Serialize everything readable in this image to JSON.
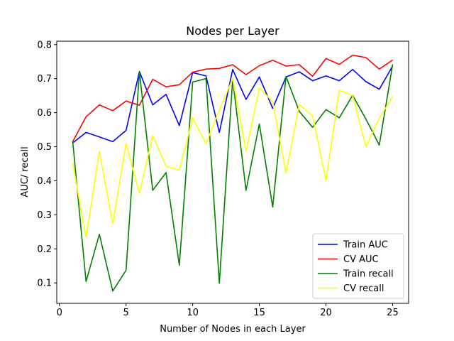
{
  "chart_data": {
    "type": "line",
    "title": "Nodes per Layer",
    "xlabel": "Number of Nodes in each Layer",
    "ylabel": "AUC/ recall",
    "xlim": [
      -0.2,
      26.2
    ],
    "ylim": [
      0.04,
      0.81
    ],
    "x_ticks": [
      0,
      5,
      10,
      15,
      20,
      25
    ],
    "y_ticks": [
      0.1,
      0.2,
      0.3,
      0.4,
      0.5,
      0.6,
      0.7,
      0.8
    ],
    "grid": false,
    "legend_position": "lower-right",
    "x": [
      1,
      2,
      3,
      4,
      5,
      6,
      7,
      8,
      9,
      10,
      11,
      12,
      13,
      14,
      15,
      16,
      17,
      18,
      19,
      20,
      21,
      22,
      23,
      24,
      25
    ],
    "series": [
      {
        "name": "Train AUC",
        "color": "#0000ff",
        "values": [
          0.511,
          0.542,
          0.529,
          0.515,
          0.548,
          0.721,
          0.623,
          0.654,
          0.562,
          0.718,
          0.708,
          0.542,
          0.727,
          0.639,
          0.705,
          0.613,
          0.705,
          0.72,
          0.694,
          0.708,
          0.694,
          0.727,
          0.691,
          0.669,
          0.737
        ]
      },
      {
        "name": "CV AUC",
        "color": "#ff0000",
        "values": [
          0.515,
          0.588,
          0.623,
          0.606,
          0.634,
          0.622,
          0.698,
          0.676,
          0.682,
          0.719,
          0.728,
          0.73,
          0.741,
          0.712,
          0.738,
          0.754,
          0.737,
          0.741,
          0.707,
          0.759,
          0.742,
          0.769,
          0.762,
          0.728,
          0.755
        ]
      },
      {
        "name": "Train recall",
        "color": "#008000",
        "values": [
          0.516,
          0.104,
          0.243,
          0.076,
          0.137,
          0.72,
          0.372,
          0.424,
          0.152,
          0.69,
          0.7,
          0.099,
          0.699,
          0.372,
          0.567,
          0.323,
          0.706,
          0.604,
          0.557,
          0.609,
          0.585,
          0.651,
          0.581,
          0.505,
          0.742
        ]
      },
      {
        "name": "CV recall",
        "color": "#ffff00",
        "values": [
          0.452,
          0.234,
          0.486,
          0.273,
          0.509,
          0.363,
          0.533,
          0.443,
          0.431,
          0.584,
          0.509,
          0.608,
          0.7,
          0.486,
          0.673,
          0.632,
          0.423,
          0.624,
          0.59,
          0.4,
          0.666,
          0.65,
          0.5,
          0.584,
          0.647
        ]
      }
    ]
  }
}
